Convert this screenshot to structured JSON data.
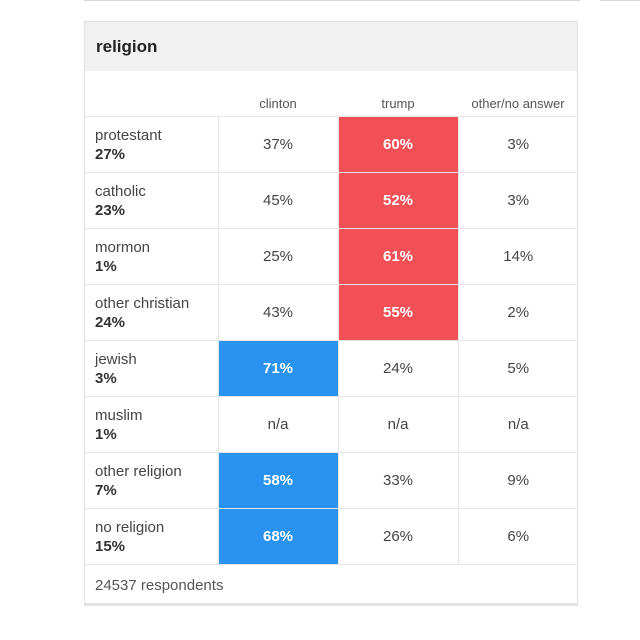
{
  "chart_data": {
    "type": "table",
    "title": "religion",
    "columns": [
      "clinton",
      "trump",
      "other/no answer"
    ],
    "rows": [
      {
        "label": "protestant",
        "share": "27%",
        "values": [
          "37%",
          "60%",
          "3%"
        ],
        "winner": "trump"
      },
      {
        "label": "catholic",
        "share": "23%",
        "values": [
          "45%",
          "52%",
          "3%"
        ],
        "winner": "trump"
      },
      {
        "label": "mormon",
        "share": "1%",
        "values": [
          "25%",
          "61%",
          "14%"
        ],
        "winner": "trump"
      },
      {
        "label": "other christian",
        "share": "24%",
        "values": [
          "43%",
          "55%",
          "2%"
        ],
        "winner": "trump"
      },
      {
        "label": "jewish",
        "share": "3%",
        "values": [
          "71%",
          "24%",
          "5%"
        ],
        "winner": "clinton"
      },
      {
        "label": "muslim",
        "share": "1%",
        "values": [
          "n/a",
          "n/a",
          "n/a"
        ],
        "winner": ""
      },
      {
        "label": "other religion",
        "share": "7%",
        "values": [
          "58%",
          "33%",
          "9%"
        ],
        "winner": "clinton"
      },
      {
        "label": "no religion",
        "share": "15%",
        "values": [
          "68%",
          "26%",
          "6%"
        ],
        "winner": "clinton"
      }
    ],
    "footer": "24537 respondents",
    "colors": {
      "trump": "#f25057",
      "clinton": "#2a93ef"
    }
  }
}
